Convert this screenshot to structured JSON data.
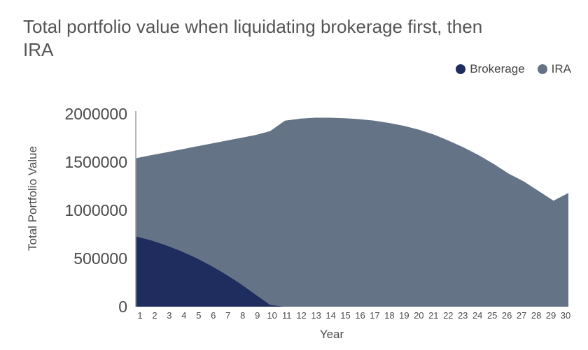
{
  "chart_data": {
    "type": "area",
    "stacked": true,
    "title": "Total portfolio value when liquidating brokerage first, then IRA",
    "xlabel": "Year",
    "ylabel": "Total Portfolio Value",
    "ylim": [
      0,
      2000000
    ],
    "yticks": [
      "0",
      "500000",
      "1000000",
      "1500000",
      "2000000"
    ],
    "categories": [
      "1",
      "2",
      "3",
      "4",
      "5",
      "6",
      "7",
      "8",
      "9",
      "10",
      "11",
      "12",
      "13",
      "14",
      "15",
      "16",
      "17",
      "18",
      "19",
      "20",
      "21",
      "22",
      "23",
      "24",
      "25",
      "26",
      "27",
      "28",
      "29",
      "30"
    ],
    "legend_position": "top-right",
    "grid": false,
    "series": [
      {
        "name": "Brokerage",
        "color": "#1f2d5e",
        "values": [
          730000,
          690000,
          640000,
          580000,
          510000,
          430000,
          340000,
          240000,
          130000,
          20000,
          0,
          0,
          0,
          0,
          0,
          0,
          0,
          0,
          0,
          0,
          0,
          0,
          0,
          0,
          0,
          0,
          0,
          0,
          0,
          0
        ]
      },
      {
        "name": "IRA",
        "color": "#647386",
        "values": [
          810000,
          880000,
          960000,
          1050000,
          1150000,
          1260000,
          1380000,
          1510000,
          1650000,
          1800000,
          1930000,
          1950000,
          1960000,
          1960000,
          1955000,
          1945000,
          1930000,
          1905000,
          1875000,
          1835000,
          1785000,
          1720000,
          1650000,
          1570000,
          1480000,
          1380000,
          1300000,
          1200000,
          1100000,
          1180000
        ]
      }
    ]
  }
}
